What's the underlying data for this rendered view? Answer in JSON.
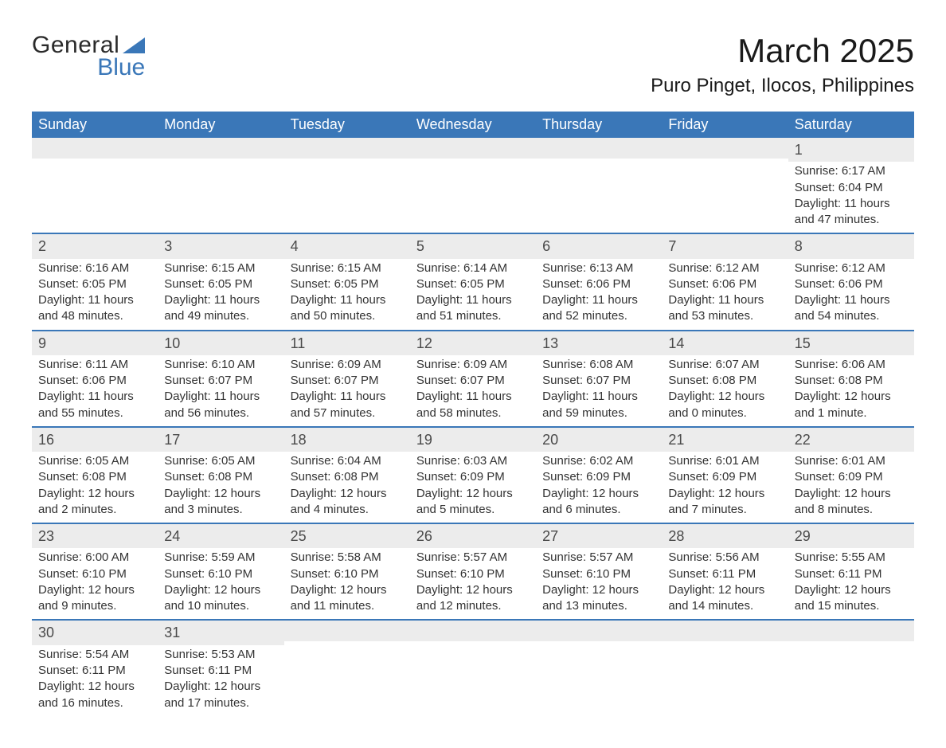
{
  "logo": {
    "text1": "General",
    "text2": "Blue",
    "tri_color": "#3a77b8"
  },
  "title": "March 2025",
  "location": "Puro Pinget, Ilocos, Philippines",
  "colors": {
    "header_bg": "#3a77b8",
    "header_text": "#ffffff",
    "daynum_bg": "#ececec",
    "row_border": "#3a77b8",
    "text": "#333333",
    "bg": "#ffffff"
  },
  "day_headers": [
    "Sunday",
    "Monday",
    "Tuesday",
    "Wednesday",
    "Thursday",
    "Friday",
    "Saturday"
  ],
  "weeks": [
    [
      null,
      null,
      null,
      null,
      null,
      null,
      {
        "n": "1",
        "sr": "Sunrise: 6:17 AM",
        "ss": "Sunset: 6:04 PM",
        "d1": "Daylight: 11 hours",
        "d2": "and 47 minutes."
      }
    ],
    [
      {
        "n": "2",
        "sr": "Sunrise: 6:16 AM",
        "ss": "Sunset: 6:05 PM",
        "d1": "Daylight: 11 hours",
        "d2": "and 48 minutes."
      },
      {
        "n": "3",
        "sr": "Sunrise: 6:15 AM",
        "ss": "Sunset: 6:05 PM",
        "d1": "Daylight: 11 hours",
        "d2": "and 49 minutes."
      },
      {
        "n": "4",
        "sr": "Sunrise: 6:15 AM",
        "ss": "Sunset: 6:05 PM",
        "d1": "Daylight: 11 hours",
        "d2": "and 50 minutes."
      },
      {
        "n": "5",
        "sr": "Sunrise: 6:14 AM",
        "ss": "Sunset: 6:05 PM",
        "d1": "Daylight: 11 hours",
        "d2": "and 51 minutes."
      },
      {
        "n": "6",
        "sr": "Sunrise: 6:13 AM",
        "ss": "Sunset: 6:06 PM",
        "d1": "Daylight: 11 hours",
        "d2": "and 52 minutes."
      },
      {
        "n": "7",
        "sr": "Sunrise: 6:12 AM",
        "ss": "Sunset: 6:06 PM",
        "d1": "Daylight: 11 hours",
        "d2": "and 53 minutes."
      },
      {
        "n": "8",
        "sr": "Sunrise: 6:12 AM",
        "ss": "Sunset: 6:06 PM",
        "d1": "Daylight: 11 hours",
        "d2": "and 54 minutes."
      }
    ],
    [
      {
        "n": "9",
        "sr": "Sunrise: 6:11 AM",
        "ss": "Sunset: 6:06 PM",
        "d1": "Daylight: 11 hours",
        "d2": "and 55 minutes."
      },
      {
        "n": "10",
        "sr": "Sunrise: 6:10 AM",
        "ss": "Sunset: 6:07 PM",
        "d1": "Daylight: 11 hours",
        "d2": "and 56 minutes."
      },
      {
        "n": "11",
        "sr": "Sunrise: 6:09 AM",
        "ss": "Sunset: 6:07 PM",
        "d1": "Daylight: 11 hours",
        "d2": "and 57 minutes."
      },
      {
        "n": "12",
        "sr": "Sunrise: 6:09 AM",
        "ss": "Sunset: 6:07 PM",
        "d1": "Daylight: 11 hours",
        "d2": "and 58 minutes."
      },
      {
        "n": "13",
        "sr": "Sunrise: 6:08 AM",
        "ss": "Sunset: 6:07 PM",
        "d1": "Daylight: 11 hours",
        "d2": "and 59 minutes."
      },
      {
        "n": "14",
        "sr": "Sunrise: 6:07 AM",
        "ss": "Sunset: 6:08 PM",
        "d1": "Daylight: 12 hours",
        "d2": "and 0 minutes."
      },
      {
        "n": "15",
        "sr": "Sunrise: 6:06 AM",
        "ss": "Sunset: 6:08 PM",
        "d1": "Daylight: 12 hours",
        "d2": "and 1 minute."
      }
    ],
    [
      {
        "n": "16",
        "sr": "Sunrise: 6:05 AM",
        "ss": "Sunset: 6:08 PM",
        "d1": "Daylight: 12 hours",
        "d2": "and 2 minutes."
      },
      {
        "n": "17",
        "sr": "Sunrise: 6:05 AM",
        "ss": "Sunset: 6:08 PM",
        "d1": "Daylight: 12 hours",
        "d2": "and 3 minutes."
      },
      {
        "n": "18",
        "sr": "Sunrise: 6:04 AM",
        "ss": "Sunset: 6:08 PM",
        "d1": "Daylight: 12 hours",
        "d2": "and 4 minutes."
      },
      {
        "n": "19",
        "sr": "Sunrise: 6:03 AM",
        "ss": "Sunset: 6:09 PM",
        "d1": "Daylight: 12 hours",
        "d2": "and 5 minutes."
      },
      {
        "n": "20",
        "sr": "Sunrise: 6:02 AM",
        "ss": "Sunset: 6:09 PM",
        "d1": "Daylight: 12 hours",
        "d2": "and 6 minutes."
      },
      {
        "n": "21",
        "sr": "Sunrise: 6:01 AM",
        "ss": "Sunset: 6:09 PM",
        "d1": "Daylight: 12 hours",
        "d2": "and 7 minutes."
      },
      {
        "n": "22",
        "sr": "Sunrise: 6:01 AM",
        "ss": "Sunset: 6:09 PM",
        "d1": "Daylight: 12 hours",
        "d2": "and 8 minutes."
      }
    ],
    [
      {
        "n": "23",
        "sr": "Sunrise: 6:00 AM",
        "ss": "Sunset: 6:10 PM",
        "d1": "Daylight: 12 hours",
        "d2": "and 9 minutes."
      },
      {
        "n": "24",
        "sr": "Sunrise: 5:59 AM",
        "ss": "Sunset: 6:10 PM",
        "d1": "Daylight: 12 hours",
        "d2": "and 10 minutes."
      },
      {
        "n": "25",
        "sr": "Sunrise: 5:58 AM",
        "ss": "Sunset: 6:10 PM",
        "d1": "Daylight: 12 hours",
        "d2": "and 11 minutes."
      },
      {
        "n": "26",
        "sr": "Sunrise: 5:57 AM",
        "ss": "Sunset: 6:10 PM",
        "d1": "Daylight: 12 hours",
        "d2": "and 12 minutes."
      },
      {
        "n": "27",
        "sr": "Sunrise: 5:57 AM",
        "ss": "Sunset: 6:10 PM",
        "d1": "Daylight: 12 hours",
        "d2": "and 13 minutes."
      },
      {
        "n": "28",
        "sr": "Sunrise: 5:56 AM",
        "ss": "Sunset: 6:11 PM",
        "d1": "Daylight: 12 hours",
        "d2": "and 14 minutes."
      },
      {
        "n": "29",
        "sr": "Sunrise: 5:55 AM",
        "ss": "Sunset: 6:11 PM",
        "d1": "Daylight: 12 hours",
        "d2": "and 15 minutes."
      }
    ],
    [
      {
        "n": "30",
        "sr": "Sunrise: 5:54 AM",
        "ss": "Sunset: 6:11 PM",
        "d1": "Daylight: 12 hours",
        "d2": "and 16 minutes."
      },
      {
        "n": "31",
        "sr": "Sunrise: 5:53 AM",
        "ss": "Sunset: 6:11 PM",
        "d1": "Daylight: 12 hours",
        "d2": "and 17 minutes."
      },
      null,
      null,
      null,
      null,
      null
    ]
  ]
}
